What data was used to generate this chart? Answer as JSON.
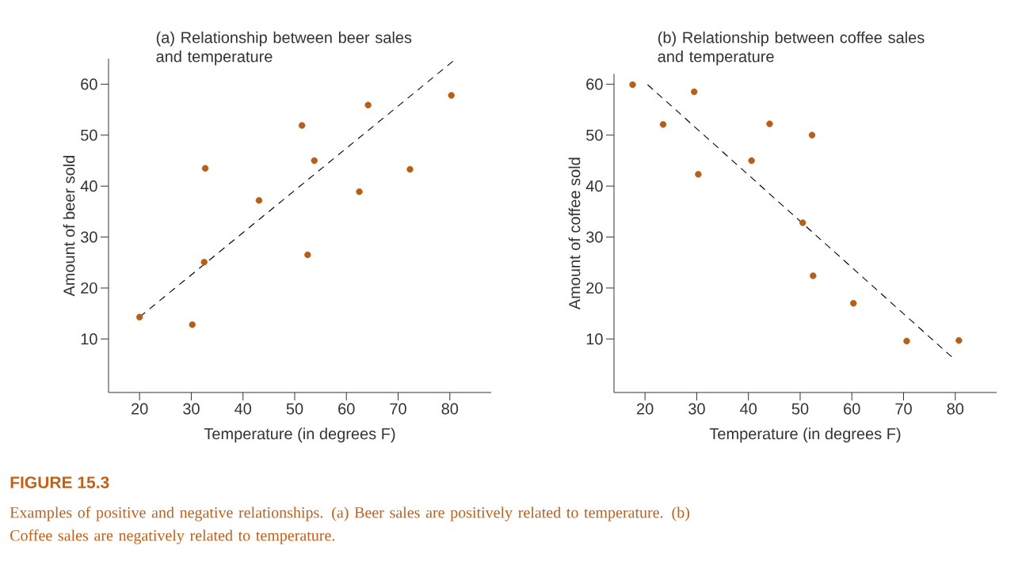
{
  "chart_data": [
    {
      "type": "scatter",
      "title": "(a) Relationship between beer sales and temperature",
      "xlabel": "Temperature (in degrees F)",
      "ylabel": "Amount of beer sold",
      "xlim": [
        14,
        88
      ],
      "ylim": [
        -0.5,
        65
      ],
      "xticks": [
        20,
        30,
        40,
        50,
        60,
        70,
        80
      ],
      "yticks": [
        10,
        20,
        30,
        40,
        50,
        60
      ],
      "marker": "circle",
      "series": [
        {
          "color": "#b5601a",
          "x": [
            20,
            30.2,
            32.7,
            32.5,
            43.1,
            51.4,
            53.8,
            52.5,
            64.2,
            62.5,
            72.3,
            80.3
          ],
          "values": [
            14.3,
            12.8,
            43.5,
            25.1,
            37.2,
            51.9,
            45,
            26.5,
            55.9,
            38.9,
            43.3,
            57.8
          ]
        },
        {
          "type": "line",
          "color": "#000000",
          "line_style": "dashed",
          "marker": "none",
          "x": [
            20,
            80.6
          ],
          "values": [
            14.3,
            64.5
          ]
        }
      ],
      "annotations": [
        "FIGURE 15.3",
        "Examples of positive and negative relationships. (a) Beer sales are positively related to temperature. (b) Coffee sales are negatively related to temperature."
      ]
    },
    {
      "type": "scatter",
      "title": "(b) Relationship between coffee sales and temperature",
      "xlabel": "Temperature (in degrees F)",
      "ylabel": "Amount of coffee sold",
      "xlim": [
        14,
        88
      ],
      "ylim": [
        -0.5,
        62
      ],
      "xticks": [
        20,
        30,
        40,
        50,
        60,
        70,
        80
      ],
      "yticks": [
        10,
        20,
        30,
        40,
        50,
        60
      ],
      "marker": "circle",
      "series": [
        {
          "color": "#b5601a",
          "x": [
            17.6,
            23.5,
            29.5,
            30.3,
            40.6,
            44.1,
            52.3,
            50.5,
            52.5,
            60.3,
            70.6,
            80.7
          ],
          "values": [
            59.9,
            52.1,
            58.5,
            42.3,
            45,
            52.2,
            50,
            32.8,
            22.4,
            17,
            9.6,
            9.7
          ]
        },
        {
          "type": "line",
          "color": "#000000",
          "line_style": "dashed",
          "marker": "none",
          "x": [
            20.5,
            79.3
          ],
          "values": [
            59.9,
            6.5
          ]
        }
      ]
    }
  ]
}
